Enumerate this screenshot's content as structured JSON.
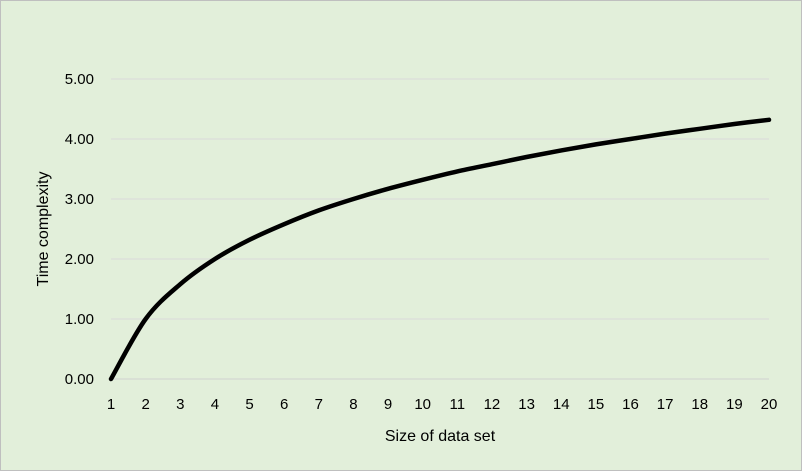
{
  "chart_data": {
    "type": "line",
    "title": "",
    "xlabel": "Size of data set",
    "ylabel": "Time complexity",
    "x": [
      1,
      2,
      3,
      4,
      5,
      6,
      7,
      8,
      9,
      10,
      11,
      12,
      13,
      14,
      15,
      16,
      17,
      18,
      19,
      20
    ],
    "series": [
      {
        "values": [
          0.0,
          1.0,
          1.58,
          2.0,
          2.32,
          2.58,
          2.81,
          3.0,
          3.17,
          3.32,
          3.46,
          3.58,
          3.7,
          3.81,
          3.91,
          4.0,
          4.09,
          4.17,
          4.25,
          4.32
        ],
        "color": "#000000"
      }
    ],
    "xlim": [
      1,
      20
    ],
    "ylim": [
      0,
      5
    ],
    "y_ticks": [
      "0.00",
      "1.00",
      "2.00",
      "3.00",
      "4.00",
      "5.00"
    ],
    "x_ticks": [
      "1",
      "2",
      "3",
      "4",
      "5",
      "6",
      "7",
      "8",
      "9",
      "10",
      "11",
      "12",
      "13",
      "14",
      "15",
      "16",
      "17",
      "18",
      "19",
      "20"
    ],
    "grid": "horizontal",
    "gridline_color": "#d9d9d9",
    "background_color": "#e2efda",
    "legend": "none"
  }
}
